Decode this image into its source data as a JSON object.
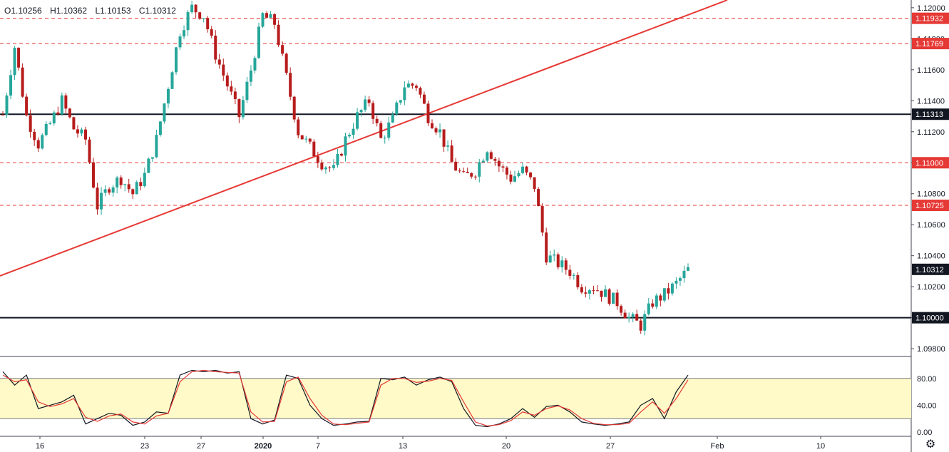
{
  "ohlc": {
    "open": "O1.10256",
    "high": "H1.10362",
    "low": "L1.10153",
    "close": "C1.10312"
  },
  "colors": {
    "up": "#26a69a",
    "down": "#ef5350",
    "body_up": "#26a69a",
    "body_down": "#b71c1c",
    "trendline": "#e53935",
    "support": "#131722",
    "dashed": "#e53935",
    "stoch_k": "#131722",
    "stoch_d": "#e53935",
    "stoch_band": "#fffac8"
  },
  "icons": {
    "settings": "gear-icon"
  },
  "chart_data": [
    {
      "type": "candlestick",
      "title": "",
      "ylim": [
        1.0975,
        1.1205
      ],
      "y_ticks": [
        "1.12000",
        "1.11800",
        "1.11600",
        "1.11400",
        "1.11200",
        "1.11000",
        "1.10800",
        "1.10600",
        "1.10400",
        "1.10200",
        "1.10000",
        "1.09800"
      ],
      "x_ticks": [
        "16",
        "23",
        "27",
        "2020",
        "7",
        "13",
        "20",
        "27",
        "Feb",
        "10"
      ],
      "horizontal_levels": [
        {
          "value": 1.11932,
          "label": "1.11932",
          "style": "dashed"
        },
        {
          "value": 1.11769,
          "label": "1.11769",
          "style": "dashed"
        },
        {
          "value": 1.11313,
          "label": "1.11313",
          "style": "solid"
        },
        {
          "value": 1.11,
          "label": "1.11000",
          "style": "dashed"
        },
        {
          "value": 1.10725,
          "label": "1.10725",
          "style": "dashed"
        },
        {
          "value": 1.1,
          "label": "1.10000",
          "style": "solid"
        }
      ],
      "last_price": {
        "value": 1.10312,
        "label": "1.10312"
      },
      "trendline": {
        "from": 1.1027,
        "to": 1.1205
      },
      "anchors": [
        1.1131,
        1.1175,
        1.113,
        1.1112,
        1.1125,
        1.114,
        1.1122,
        1.1115,
        1.1072,
        1.1085,
        1.109,
        1.108,
        1.1092,
        1.1115,
        1.115,
        1.1185,
        1.12,
        1.1195,
        1.117,
        1.115,
        1.113,
        1.116,
        1.1195,
        1.119,
        1.1155,
        1.112,
        1.111,
        1.11,
        1.1095,
        1.1115,
        1.113,
        1.114,
        1.1115,
        1.1128,
        1.115,
        1.115,
        1.113,
        1.112,
        1.11,
        1.109,
        1.1095,
        1.111,
        1.1098,
        1.109,
        1.1095,
        1.1085,
        1.104,
        1.1035,
        1.103,
        1.102,
        1.102,
        1.1015,
        1.101,
        1.1,
        1.0995,
        1.101,
        1.1015,
        1.1022,
        1.1031
      ]
    },
    {
      "type": "line",
      "title": "",
      "ylim": [
        0,
        100
      ],
      "band": [
        20,
        80
      ],
      "y_ticks": [
        "80.00",
        "40.00",
        "0.00"
      ],
      "series": [
        {
          "values": [
            90,
            70,
            85,
            35,
            40,
            45,
            55,
            12,
            20,
            28,
            25,
            10,
            15,
            30,
            28,
            85,
            92,
            90,
            92,
            88,
            90,
            20,
            12,
            18,
            85,
            80,
            40,
            20,
            10,
            12,
            15,
            16,
            80,
            78,
            82,
            70,
            78,
            82,
            75,
            35,
            10,
            8,
            12,
            20,
            35,
            22,
            38,
            40,
            30,
            15,
            12,
            10,
            12,
            15,
            40,
            50,
            20,
            60,
            85
          ]
        },
        {
          "values": [
            85,
            75,
            78,
            45,
            38,
            42,
            50,
            22,
            16,
            24,
            27,
            15,
            12,
            24,
            28,
            75,
            90,
            92,
            90,
            89,
            88,
            30,
            15,
            16,
            75,
            82,
            50,
            25,
            12,
            11,
            13,
            15,
            70,
            80,
            80,
            74,
            76,
            80,
            77,
            45,
            15,
            9,
            11,
            17,
            30,
            25,
            35,
            39,
            33,
            20,
            13,
            11,
            11,
            13,
            30,
            45,
            28,
            50,
            78
          ]
        }
      ]
    }
  ]
}
